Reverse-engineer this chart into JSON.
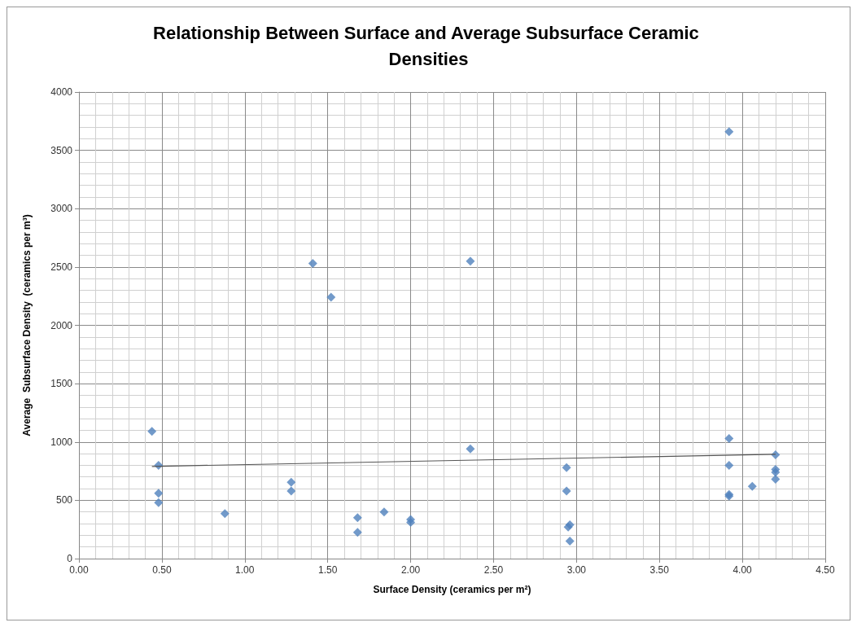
{
  "chart_data": {
    "type": "scatter",
    "title": "Relationship Between Surface and Average Subsurface Ceramic Densities",
    "xlabel": "Surface Density (ceramics per m²)",
    "ylabel": "Average  Subsurface Density  (ceramics per m³)",
    "x": [
      0.44,
      0.48,
      0.48,
      0.48,
      0.88,
      1.28,
      1.28,
      1.41,
      1.52,
      1.68,
      1.68,
      1.84,
      2.0,
      2.0,
      2.36,
      2.36,
      2.94,
      2.94,
      2.96,
      2.95,
      2.96,
      3.92,
      3.92,
      3.92,
      3.92,
      3.92,
      4.06,
      4.2,
      4.2,
      4.2,
      4.2
    ],
    "series": [
      {
        "color": "#4f81bd",
        "marker": "diamond",
        "values": [
          1090,
          800,
          560,
          480,
          385,
          655,
          580,
          2530,
          2240,
          350,
          225,
          400,
          335,
          310,
          2550,
          940,
          780,
          580,
          290,
          270,
          150,
          3660,
          1030,
          800,
          550,
          535,
          620,
          890,
          765,
          740,
          680
        ]
      },
      {
        "type": "line",
        "color": "#555555",
        "marker": "none",
        "x": [
          0.44,
          4.2
        ],
        "values": [
          790,
          895
        ]
      }
    ],
    "xlim": [
      0,
      4.5
    ],
    "xticks": [
      {
        "value": 0,
        "label": "0.00"
      },
      {
        "value": 0.5,
        "label": "0.50"
      },
      {
        "value": 1,
        "label": "1.00"
      },
      {
        "value": 1.5,
        "label": "1.50"
      },
      {
        "value": 2,
        "label": "2.00"
      },
      {
        "value": 2.5,
        "label": "2.50"
      },
      {
        "value": 3,
        "label": "3.00"
      },
      {
        "value": 3.5,
        "label": "3.50"
      },
      {
        "value": 4,
        "label": "4.00"
      },
      {
        "value": 4.5,
        "label": "4.50"
      }
    ],
    "ylim": [
      0,
      4000
    ],
    "yticks": [
      0,
      500,
      1000,
      1500,
      2000,
      2500,
      3000,
      3500,
      4000
    ],
    "grid": true
  }
}
